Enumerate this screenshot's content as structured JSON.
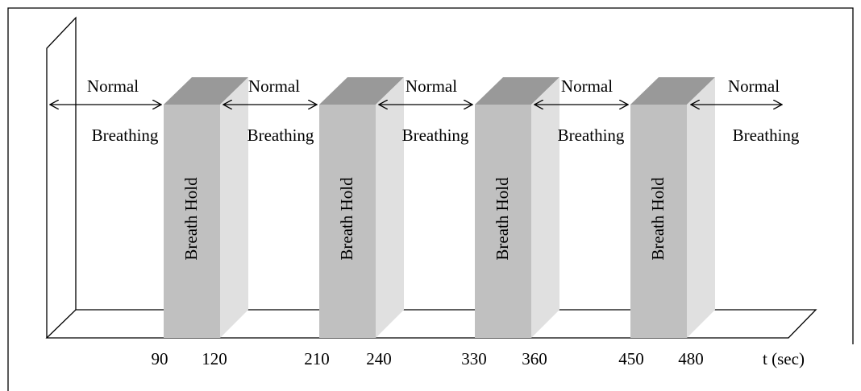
{
  "segments": [
    {
      "top": "Normal",
      "bottom": "Breathing"
    },
    {
      "top": "Normal",
      "bottom": "Breathing"
    },
    {
      "top": "Normal",
      "bottom": "Breathing"
    },
    {
      "top": "Normal",
      "bottom": "Breathing"
    },
    {
      "top": "Normal",
      "bottom": "Breathing"
    }
  ],
  "blocks": [
    {
      "label": "Breath Hold"
    },
    {
      "label": "Breath Hold"
    },
    {
      "label": "Breath Hold"
    },
    {
      "label": "Breath Hold"
    }
  ],
  "ticks": [
    90,
    120,
    210,
    240,
    330,
    360,
    450,
    480
  ],
  "axis_label": "t (sec)"
}
